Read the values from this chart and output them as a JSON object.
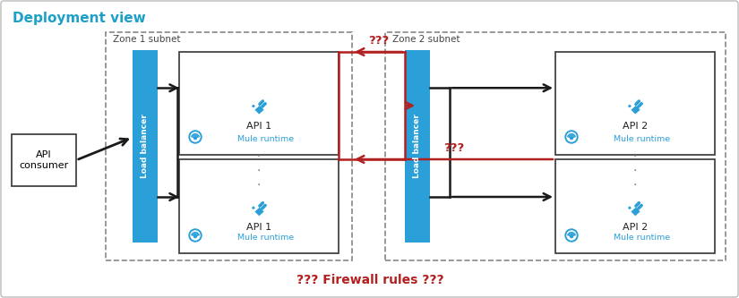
{
  "title": "Deployment view",
  "title_color": "#1da0c8",
  "bg_color": "#FFFFFF",
  "zone1_label": "Zone 1 subnet",
  "zone2_label": "Zone 2 subnet",
  "lb_color": "#2b9fd8",
  "lb_label": "Load balancer",
  "api1_label1": "API 1",
  "api2_label1": "API 2",
  "mule_label": "Mule runtime",
  "consumer_label": "API\nconsumer",
  "firewall_label": "??? Firewall rules ???",
  "firewall_color": "#b22020",
  "qqq_color": "#b22020",
  "arrow_black": "#1a1a1a",
  "arrow_red": "#b22020",
  "zone_dash_color": "#888888",
  "plug_color": "#2b9fd8",
  "mule_color": "#2b9fd8"
}
